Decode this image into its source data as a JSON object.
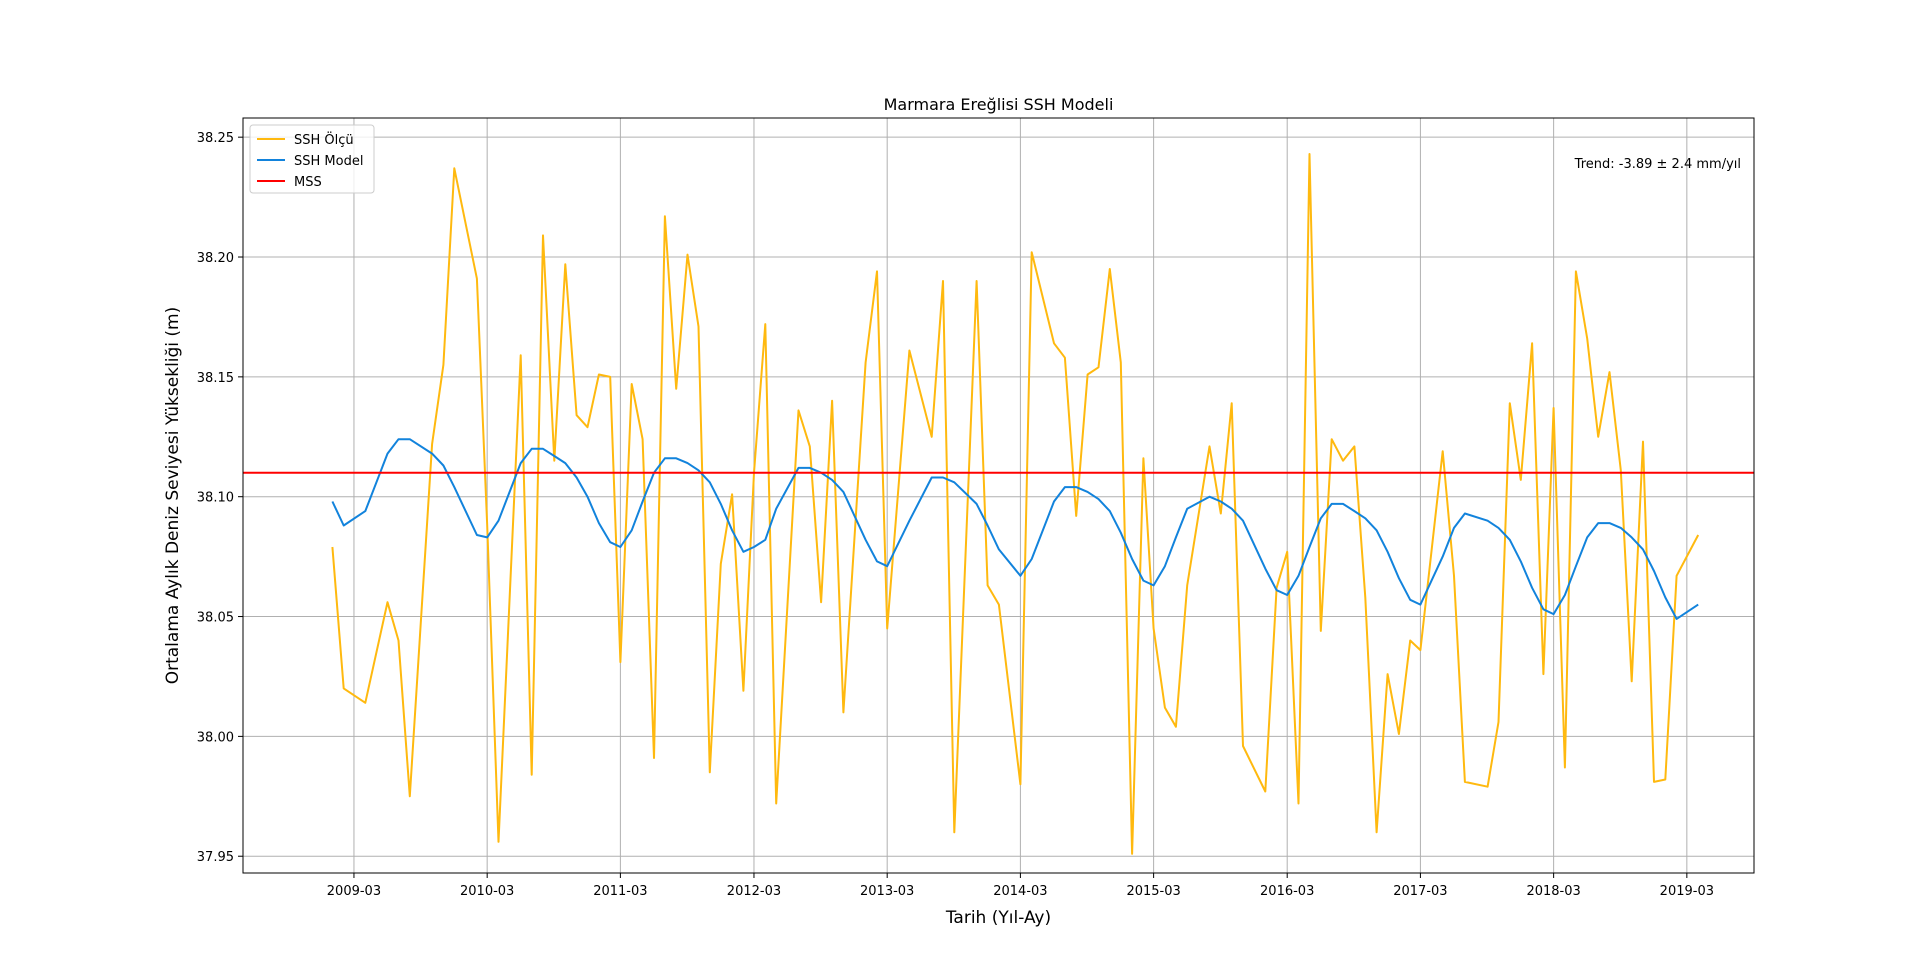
{
  "chart_data": {
    "type": "line",
    "title": "Marmara Ereğlisi SSH Modeli",
    "xlabel": "Tarih (Yıl-Ay)",
    "ylabel": "Ortalama Aylık Deniz Seviyesi Yüksekliği (m)",
    "annotation": "Trend: -3.89 ± 2.4 mm/yıl",
    "grid": true,
    "legend_position": "upper-left",
    "xlim": [
      "2008-05-01",
      "2019-09-01"
    ],
    "ylim": [
      37.943,
      38.258
    ],
    "x_ticks": [
      "2009-03",
      "2010-03",
      "2011-03",
      "2012-03",
      "2013-03",
      "2014-03",
      "2015-03",
      "2016-03",
      "2017-03",
      "2018-03",
      "2019-03"
    ],
    "y_ticks": [
      37.95,
      38.0,
      38.05,
      38.1,
      38.15,
      38.2,
      38.25
    ],
    "y_tick_labels": [
      "37.95",
      "38.00",
      "38.05",
      "38.10",
      "38.15",
      "38.20",
      "38.25"
    ],
    "series": [
      {
        "name": "SSH Ölçü",
        "color": "#FFB90F",
        "points": [
          [
            "2009-01-01",
            38.079
          ],
          [
            "2009-02-01",
            38.02
          ],
          [
            "2009-04-01",
            38.014
          ],
          [
            "2009-06-01",
            38.056
          ],
          [
            "2009-07-01",
            38.04
          ],
          [
            "2009-08-01",
            37.975
          ],
          [
            "2009-10-01",
            38.122
          ],
          [
            "2009-11-01",
            38.155
          ],
          [
            "2009-12-01",
            38.237
          ],
          [
            "2010-02-01",
            38.191
          ],
          [
            "2010-03-01",
            38.088
          ],
          [
            "2010-04-01",
            37.956
          ],
          [
            "2010-06-01",
            38.159
          ],
          [
            "2010-07-01",
            37.984
          ],
          [
            "2010-08-01",
            38.209
          ],
          [
            "2010-09-01",
            38.115
          ],
          [
            "2010-10-01",
            38.197
          ],
          [
            "2010-11-01",
            38.134
          ],
          [
            "2010-12-01",
            38.129
          ],
          [
            "2011-01-01",
            38.151
          ],
          [
            "2011-02-01",
            38.15
          ],
          [
            "2011-03-01",
            38.031
          ],
          [
            "2011-04-01",
            38.147
          ],
          [
            "2011-05-01",
            38.124
          ],
          [
            "2011-06-01",
            37.991
          ],
          [
            "2011-07-01",
            38.217
          ],
          [
            "2011-08-01",
            38.145
          ],
          [
            "2011-09-01",
            38.201
          ],
          [
            "2011-10-01",
            38.171
          ],
          [
            "2011-11-01",
            37.985
          ],
          [
            "2011-12-01",
            38.072
          ],
          [
            "2012-01-01",
            38.101
          ],
          [
            "2012-02-01",
            38.019
          ],
          [
            "2012-03-01",
            38.11
          ],
          [
            "2012-04-01",
            38.172
          ],
          [
            "2012-05-01",
            37.972
          ],
          [
            "2012-07-01",
            38.136
          ],
          [
            "2012-08-01",
            38.121
          ],
          [
            "2012-09-01",
            38.056
          ],
          [
            "2012-10-01",
            38.14
          ],
          [
            "2012-11-01",
            38.01
          ],
          [
            "2013-01-01",
            38.156
          ],
          [
            "2013-02-01",
            38.194
          ],
          [
            "2013-03-01",
            38.045
          ],
          [
            "2013-05-01",
            38.161
          ],
          [
            "2013-07-01",
            38.125
          ],
          [
            "2013-08-01",
            38.19
          ],
          [
            "2013-09-01",
            37.96
          ],
          [
            "2013-11-01",
            38.19
          ],
          [
            "2013-12-01",
            38.063
          ],
          [
            "2014-01-01",
            38.055
          ],
          [
            "2014-03-01",
            37.98
          ],
          [
            "2014-04-01",
            38.202
          ],
          [
            "2014-06-01",
            38.164
          ],
          [
            "2014-07-01",
            38.158
          ],
          [
            "2014-08-01",
            38.092
          ],
          [
            "2014-09-01",
            38.151
          ],
          [
            "2014-10-01",
            38.154
          ],
          [
            "2014-11-01",
            38.195
          ],
          [
            "2014-12-01",
            38.156
          ],
          [
            "2015-01-01",
            37.951
          ],
          [
            "2015-02-01",
            38.116
          ],
          [
            "2015-03-01",
            38.045
          ],
          [
            "2015-04-01",
            38.012
          ],
          [
            "2015-05-01",
            38.004
          ],
          [
            "2015-06-01",
            38.063
          ],
          [
            "2015-08-01",
            38.121
          ],
          [
            "2015-09-01",
            38.093
          ],
          [
            "2015-10-01",
            38.139
          ],
          [
            "2015-11-01",
            37.996
          ],
          [
            "2016-01-01",
            37.977
          ],
          [
            "2016-02-01",
            38.062
          ],
          [
            "2016-03-01",
            38.077
          ],
          [
            "2016-04-01",
            37.972
          ],
          [
            "2016-05-01",
            38.243
          ],
          [
            "2016-06-01",
            38.044
          ],
          [
            "2016-07-01",
            38.124
          ],
          [
            "2016-08-01",
            38.115
          ],
          [
            "2016-09-01",
            38.121
          ],
          [
            "2016-10-01",
            38.058
          ],
          [
            "2016-11-01",
            37.96
          ],
          [
            "2016-12-01",
            38.026
          ],
          [
            "2017-01-01",
            38.001
          ],
          [
            "2017-02-01",
            38.04
          ],
          [
            "2017-03-01",
            38.036
          ],
          [
            "2017-05-01",
            38.119
          ],
          [
            "2017-06-01",
            38.067
          ],
          [
            "2017-07-01",
            37.981
          ],
          [
            "2017-09-01",
            37.979
          ],
          [
            "2017-10-01",
            38.006
          ],
          [
            "2017-11-01",
            38.139
          ],
          [
            "2017-12-01",
            38.107
          ],
          [
            "2018-01-01",
            38.164
          ],
          [
            "2018-02-01",
            38.026
          ],
          [
            "2018-03-01",
            38.137
          ],
          [
            "2018-04-01",
            37.987
          ],
          [
            "2018-05-01",
            38.194
          ],
          [
            "2018-06-01",
            38.166
          ],
          [
            "2018-07-01",
            38.125
          ],
          [
            "2018-08-01",
            38.152
          ],
          [
            "2018-09-01",
            38.111
          ],
          [
            "2018-10-01",
            38.023
          ],
          [
            "2018-11-01",
            38.123
          ],
          [
            "2018-12-01",
            37.981
          ],
          [
            "2019-01-01",
            37.982
          ],
          [
            "2019-02-01",
            38.067
          ],
          [
            "2019-04-01",
            38.084
          ]
        ]
      },
      {
        "name": "SSH Model",
        "color": "#1283DC",
        "points": [
          [
            "2009-01-01",
            38.098
          ],
          [
            "2009-02-01",
            38.088
          ],
          [
            "2009-04-01",
            38.094
          ],
          [
            "2009-06-01",
            38.118
          ],
          [
            "2009-07-01",
            38.124
          ],
          [
            "2009-08-01",
            38.124
          ],
          [
            "2009-10-01",
            38.118
          ],
          [
            "2009-11-01",
            38.113
          ],
          [
            "2009-12-01",
            38.104
          ],
          [
            "2010-02-01",
            38.084
          ],
          [
            "2010-03-01",
            38.083
          ],
          [
            "2010-04-01",
            38.09
          ],
          [
            "2010-06-01",
            38.114
          ],
          [
            "2010-07-01",
            38.12
          ],
          [
            "2010-08-01",
            38.12
          ],
          [
            "2010-09-01",
            38.117
          ],
          [
            "2010-10-01",
            38.114
          ],
          [
            "2010-11-01",
            38.108
          ],
          [
            "2010-12-01",
            38.1
          ],
          [
            "2011-01-01",
            38.089
          ],
          [
            "2011-02-01",
            38.081
          ],
          [
            "2011-03-01",
            38.079
          ],
          [
            "2011-04-01",
            38.086
          ],
          [
            "2011-05-01",
            38.098
          ],
          [
            "2011-06-01",
            38.11
          ],
          [
            "2011-07-01",
            38.116
          ],
          [
            "2011-08-01",
            38.116
          ],
          [
            "2011-09-01",
            38.114
          ],
          [
            "2011-10-01",
            38.111
          ],
          [
            "2011-11-01",
            38.106
          ],
          [
            "2011-12-01",
            38.097
          ],
          [
            "2012-01-01",
            38.086
          ],
          [
            "2012-02-01",
            38.077
          ],
          [
            "2012-03-01",
            38.079
          ],
          [
            "2012-04-01",
            38.082
          ],
          [
            "2012-05-01",
            38.095
          ],
          [
            "2012-07-01",
            38.112
          ],
          [
            "2012-08-01",
            38.112
          ],
          [
            "2012-09-01",
            38.11
          ],
          [
            "2012-10-01",
            38.107
          ],
          [
            "2012-11-01",
            38.102
          ],
          [
            "2013-01-01",
            38.082
          ],
          [
            "2013-02-01",
            38.073
          ],
          [
            "2013-03-01",
            38.071
          ],
          [
            "2013-05-01",
            38.09
          ],
          [
            "2013-07-01",
            38.108
          ],
          [
            "2013-08-01",
            38.108
          ],
          [
            "2013-09-01",
            38.106
          ],
          [
            "2013-11-01",
            38.097
          ],
          [
            "2013-12-01",
            38.088
          ],
          [
            "2014-01-01",
            38.078
          ],
          [
            "2014-03-01",
            38.067
          ],
          [
            "2014-04-01",
            38.074
          ],
          [
            "2014-06-01",
            38.098
          ],
          [
            "2014-07-01",
            38.104
          ],
          [
            "2014-08-01",
            38.104
          ],
          [
            "2014-09-01",
            38.102
          ],
          [
            "2014-10-01",
            38.099
          ],
          [
            "2014-11-01",
            38.094
          ],
          [
            "2014-12-01",
            38.085
          ],
          [
            "2015-01-01",
            38.074
          ],
          [
            "2015-02-01",
            38.065
          ],
          [
            "2015-03-01",
            38.063
          ],
          [
            "2015-04-01",
            38.071
          ],
          [
            "2015-05-01",
            38.083
          ],
          [
            "2015-06-01",
            38.095
          ],
          [
            "2015-08-01",
            38.1
          ],
          [
            "2015-09-01",
            38.098
          ],
          [
            "2015-10-01",
            38.095
          ],
          [
            "2015-11-01",
            38.09
          ],
          [
            "2016-01-01",
            38.07
          ],
          [
            "2016-02-01",
            38.061
          ],
          [
            "2016-03-01",
            38.059
          ],
          [
            "2016-04-01",
            38.067
          ],
          [
            "2016-05-01",
            38.079
          ],
          [
            "2016-06-01",
            38.091
          ],
          [
            "2016-07-01",
            38.097
          ],
          [
            "2016-08-01",
            38.097
          ],
          [
            "2016-09-01",
            38.094
          ],
          [
            "2016-10-01",
            38.091
          ],
          [
            "2016-11-01",
            38.086
          ],
          [
            "2016-12-01",
            38.077
          ],
          [
            "2017-01-01",
            38.066
          ],
          [
            "2017-02-01",
            38.057
          ],
          [
            "2017-03-01",
            38.055
          ],
          [
            "2017-05-01",
            38.075
          ],
          [
            "2017-06-01",
            38.087
          ],
          [
            "2017-07-01",
            38.093
          ],
          [
            "2017-09-01",
            38.09
          ],
          [
            "2017-10-01",
            38.087
          ],
          [
            "2017-11-01",
            38.082
          ],
          [
            "2017-12-01",
            38.073
          ],
          [
            "2018-01-01",
            38.062
          ],
          [
            "2018-02-01",
            38.053
          ],
          [
            "2018-03-01",
            38.051
          ],
          [
            "2018-04-01",
            38.059
          ],
          [
            "2018-05-01",
            38.071
          ],
          [
            "2018-06-01",
            38.083
          ],
          [
            "2018-07-01",
            38.089
          ],
          [
            "2018-08-01",
            38.089
          ],
          [
            "2018-09-01",
            38.087
          ],
          [
            "2018-10-01",
            38.083
          ],
          [
            "2018-11-01",
            38.078
          ],
          [
            "2018-12-01",
            38.069
          ],
          [
            "2019-01-01",
            38.058
          ],
          [
            "2019-02-01",
            38.049
          ],
          [
            "2019-04-01",
            38.055
          ]
        ]
      },
      {
        "name": "MSS",
        "color": "#FF0000",
        "constant": 38.11
      }
    ]
  }
}
